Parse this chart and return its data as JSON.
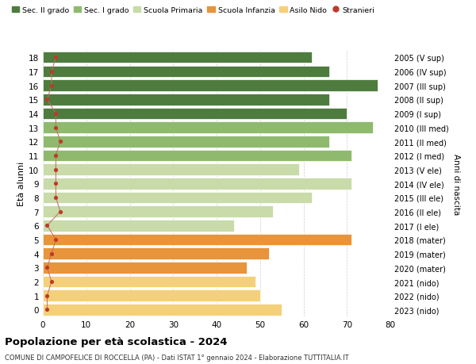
{
  "ages": [
    18,
    17,
    16,
    15,
    14,
    13,
    12,
    11,
    10,
    9,
    8,
    7,
    6,
    5,
    4,
    3,
    2,
    1,
    0
  ],
  "bar_values": [
    62,
    66,
    77,
    66,
    70,
    76,
    66,
    71,
    59,
    71,
    62,
    53,
    44,
    71,
    52,
    47,
    49,
    50,
    55
  ],
  "bar_colors": [
    "#4e7c3f",
    "#4e7c3f",
    "#4e7c3f",
    "#4e7c3f",
    "#4e7c3f",
    "#8fba6e",
    "#8fba6e",
    "#8fba6e",
    "#c8dba8",
    "#c8dba8",
    "#c8dba8",
    "#c8dba8",
    "#c8dba8",
    "#e8943a",
    "#e8943a",
    "#e8943a",
    "#f5d07a",
    "#f5d07a",
    "#f5d07a"
  ],
  "stranieri_values": [
    3,
    2,
    2,
    1,
    3,
    3,
    4,
    3,
    3,
    3,
    3,
    4,
    1,
    3,
    2,
    1,
    2,
    1,
    1
  ],
  "right_labels": [
    "2005 (V sup)",
    "2006 (IV sup)",
    "2007 (III sup)",
    "2008 (II sup)",
    "2009 (I sup)",
    "2010 (III med)",
    "2011 (II med)",
    "2012 (I med)",
    "2013 (V ele)",
    "2014 (IV ele)",
    "2015 (III ele)",
    "2016 (II ele)",
    "2017 (I ele)",
    "2018 (mater)",
    "2019 (mater)",
    "2020 (mater)",
    "2021 (nido)",
    "2022 (nido)",
    "2023 (nido)"
  ],
  "legend_labels": [
    "Sec. II grado",
    "Sec. I grado",
    "Scuola Primaria",
    "Scuola Infanzia",
    "Asilo Nido",
    "Stranieri"
  ],
  "legend_colors": [
    "#4e7c3f",
    "#8fba6e",
    "#c8dba8",
    "#e8943a",
    "#f5d07a",
    "#c0392b"
  ],
  "xlabel_right": "Anni di nascita",
  "ylabel": "Età alunni",
  "xlim": [
    0,
    80
  ],
  "xticks": [
    0,
    10,
    20,
    30,
    40,
    50,
    60,
    70,
    80
  ],
  "title": "Popolazione per età scolastica - 2024",
  "subtitle": "COMUNE DI CAMPOFELICE DI ROCCELLA (PA) - Dati ISTAT 1° gennaio 2024 - Elaborazione TUTTITALIA.IT",
  "bg_color": "#ffffff",
  "bar_edgecolor": "#ffffff",
  "stranieri_color": "#c0392b",
  "stranieri_line_color": "#c07060"
}
